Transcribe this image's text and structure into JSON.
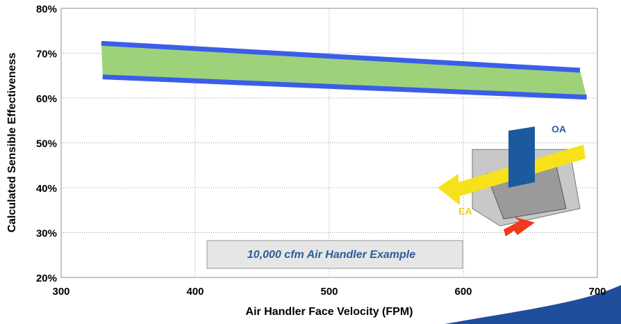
{
  "chart_data": {
    "type": "line",
    "xlabel": "Air Handler Face Velocity (FPM)",
    "ylabel": "Calculated Sensible Effectiveness",
    "xlim": [
      300,
      700
    ],
    "xticks": [
      300,
      400,
      500,
      600,
      700
    ],
    "ylim": [
      20,
      80
    ],
    "yticks": [
      {
        "value": 20,
        "label": "20%"
      },
      {
        "value": 30,
        "label": "30%"
      },
      {
        "value": 40,
        "label": "40%"
      },
      {
        "value": 50,
        "label": "50%"
      },
      {
        "value": 60,
        "label": "60%"
      },
      {
        "value": 70,
        "label": "70%"
      },
      {
        "value": 80,
        "label": "80%"
      }
    ],
    "grid": true,
    "band_color": "#9ed27a",
    "series": [
      {
        "color": "#3b5ee8",
        "x": [
          330,
          687
        ],
        "values": [
          72.2,
          66.2
        ]
      },
      {
        "color": "#3b5ee8",
        "x": [
          331,
          692
        ],
        "values": [
          64.7,
          60.2
        ]
      }
    ],
    "annotations": [
      "10,000 cfm Air Handler Example",
      "OA",
      "EA"
    ]
  }
}
